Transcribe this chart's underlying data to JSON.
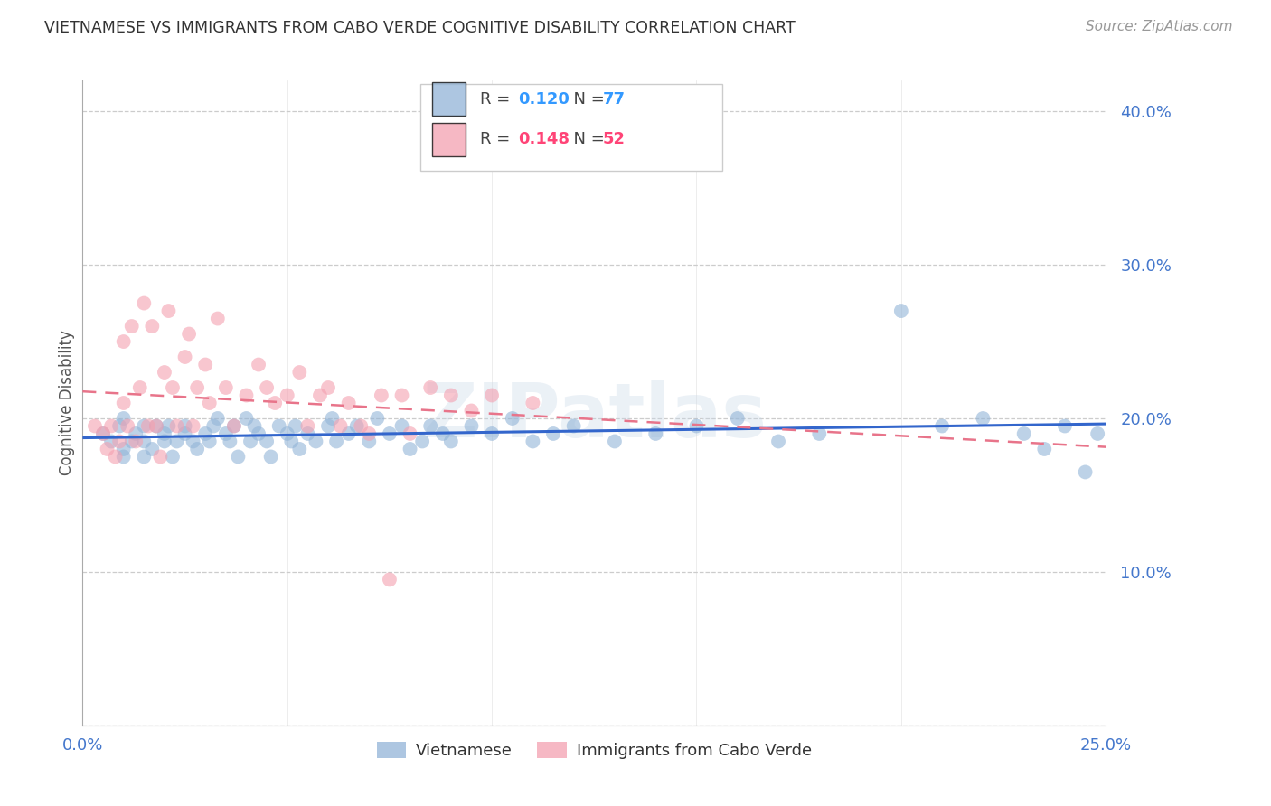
{
  "title": "VIETNAMESE VS IMMIGRANTS FROM CABO VERDE COGNITIVE DISABILITY CORRELATION CHART",
  "source": "Source: ZipAtlas.com",
  "ylabel": "Cognitive Disability",
  "xlim": [
    0.0,
    0.25
  ],
  "ylim": [
    0.0,
    0.42
  ],
  "xticks": [
    0.0,
    0.05,
    0.1,
    0.15,
    0.2,
    0.25
  ],
  "yticks": [
    0.0,
    0.1,
    0.2,
    0.3,
    0.4
  ],
  "ytick_labels": [
    "",
    "10.0%",
    "20.0%",
    "30.0%",
    "40.0%"
  ],
  "xtick_labels": [
    "0.0%",
    "",
    "",
    "",
    "",
    "25.0%"
  ],
  "blue_color": "#92B4D7",
  "pink_color": "#F4A0B0",
  "blue_line_color": "#3366CC",
  "pink_line_color": "#E8748A",
  "legend_R_blue": "0.120",
  "legend_N_blue": "77",
  "legend_R_pink": "0.148",
  "legend_N_pink": "52",
  "legend_label_blue": "Vietnamese",
  "legend_label_pink": "Immigrants from Cabo Verde",
  "watermark": "ZIPatlas",
  "background_color": "#FFFFFF",
  "grid_color": "#CCCCCC",
  "axis_label_color": "#4477CC",
  "title_color": "#333333",
  "blue_scatter_x": [
    0.005,
    0.007,
    0.009,
    0.01,
    0.01,
    0.01,
    0.012,
    0.013,
    0.015,
    0.015,
    0.015,
    0.017,
    0.018,
    0.02,
    0.02,
    0.021,
    0.022,
    0.023,
    0.025,
    0.025,
    0.027,
    0.028,
    0.03,
    0.031,
    0.032,
    0.033,
    0.035,
    0.036,
    0.037,
    0.038,
    0.04,
    0.041,
    0.042,
    0.043,
    0.045,
    0.046,
    0.048,
    0.05,
    0.051,
    0.052,
    0.053,
    0.055,
    0.057,
    0.06,
    0.061,
    0.062,
    0.065,
    0.067,
    0.07,
    0.072,
    0.075,
    0.078,
    0.08,
    0.083,
    0.085,
    0.088,
    0.09,
    0.095,
    0.1,
    0.105,
    0.11,
    0.115,
    0.12,
    0.13,
    0.14,
    0.15,
    0.16,
    0.17,
    0.18,
    0.2,
    0.21,
    0.22,
    0.23,
    0.235,
    0.24,
    0.245,
    0.248
  ],
  "blue_scatter_y": [
    0.19,
    0.185,
    0.195,
    0.18,
    0.2,
    0.175,
    0.185,
    0.19,
    0.195,
    0.175,
    0.185,
    0.18,
    0.195,
    0.19,
    0.185,
    0.195,
    0.175,
    0.185,
    0.19,
    0.195,
    0.185,
    0.18,
    0.19,
    0.185,
    0.195,
    0.2,
    0.19,
    0.185,
    0.195,
    0.175,
    0.2,
    0.185,
    0.195,
    0.19,
    0.185,
    0.175,
    0.195,
    0.19,
    0.185,
    0.195,
    0.18,
    0.19,
    0.185,
    0.195,
    0.2,
    0.185,
    0.19,
    0.195,
    0.185,
    0.2,
    0.19,
    0.195,
    0.18,
    0.185,
    0.195,
    0.19,
    0.185,
    0.195,
    0.19,
    0.2,
    0.185,
    0.19,
    0.195,
    0.185,
    0.19,
    0.195,
    0.2,
    0.185,
    0.19,
    0.27,
    0.195,
    0.2,
    0.19,
    0.18,
    0.195,
    0.165,
    0.19
  ],
  "pink_scatter_x": [
    0.003,
    0.005,
    0.006,
    0.007,
    0.008,
    0.009,
    0.01,
    0.01,
    0.011,
    0.012,
    0.013,
    0.014,
    0.015,
    0.016,
    0.017,
    0.018,
    0.019,
    0.02,
    0.021,
    0.022,
    0.023,
    0.025,
    0.026,
    0.027,
    0.028,
    0.03,
    0.031,
    0.033,
    0.035,
    0.037,
    0.04,
    0.043,
    0.045,
    0.047,
    0.05,
    0.053,
    0.055,
    0.058,
    0.06,
    0.063,
    0.065,
    0.068,
    0.07,
    0.073,
    0.075,
    0.078,
    0.08,
    0.085,
    0.09,
    0.095,
    0.1,
    0.11
  ],
  "pink_scatter_y": [
    0.195,
    0.19,
    0.18,
    0.195,
    0.175,
    0.185,
    0.25,
    0.21,
    0.195,
    0.26,
    0.185,
    0.22,
    0.275,
    0.195,
    0.26,
    0.195,
    0.175,
    0.23,
    0.27,
    0.22,
    0.195,
    0.24,
    0.255,
    0.195,
    0.22,
    0.235,
    0.21,
    0.265,
    0.22,
    0.195,
    0.215,
    0.235,
    0.22,
    0.21,
    0.215,
    0.23,
    0.195,
    0.215,
    0.22,
    0.195,
    0.21,
    0.195,
    0.19,
    0.215,
    0.095,
    0.215,
    0.19,
    0.22,
    0.215,
    0.205,
    0.215,
    0.21
  ]
}
